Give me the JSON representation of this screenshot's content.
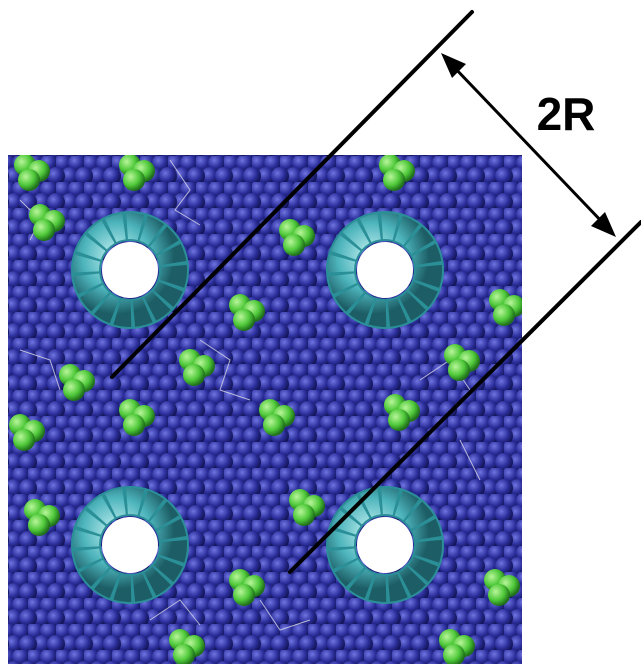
{
  "annotation": {
    "label": "2R"
  }
}
